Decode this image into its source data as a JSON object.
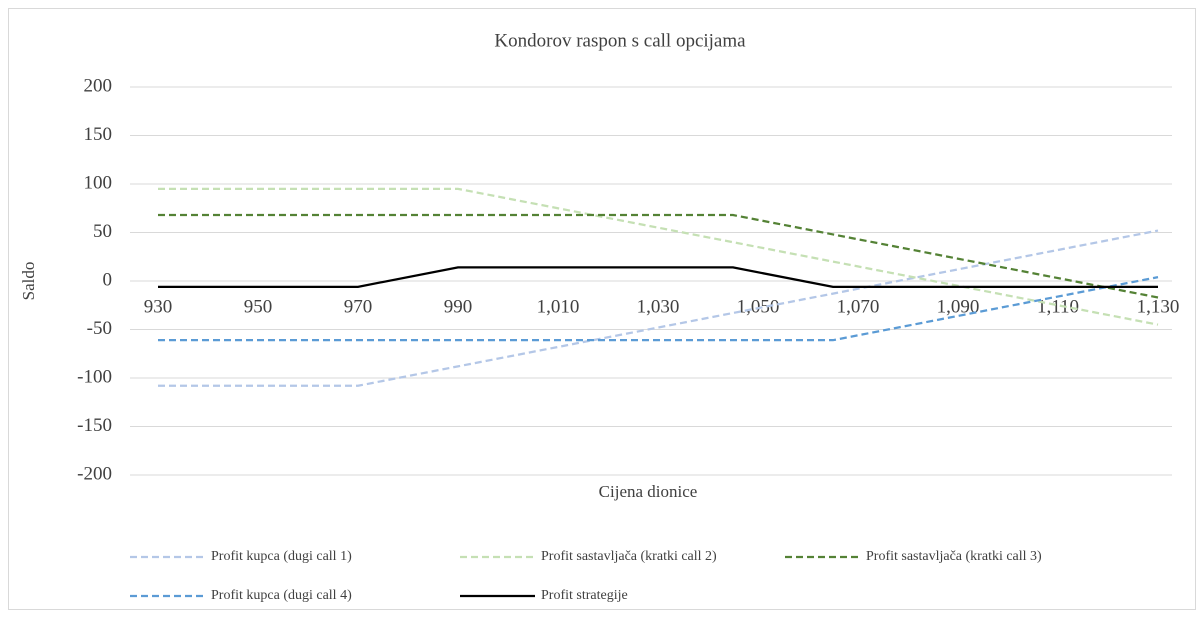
{
  "chart_data": {
    "type": "line",
    "title": "Kondorov raspon s call opcijama",
    "x_label": "Cijena dionice",
    "y_label": "Saldo",
    "x": [
      930,
      970,
      990,
      1045,
      1065,
      1130
    ],
    "xlim": [
      930,
      1130
    ],
    "xticks": [
      930,
      950,
      970,
      990,
      {
        "value": 1010,
        "label": "1,010"
      },
      {
        "value": 1030,
        "label": "1,030"
      },
      {
        "value": 1050,
        "label": "1,050"
      },
      {
        "value": 1070,
        "label": "1,070"
      },
      {
        "value": 1090,
        "label": "1,090"
      },
      {
        "value": 1110,
        "label": "1,110"
      },
      {
        "value": 1130,
        "label": "1,130"
      }
    ],
    "ylim": [
      -200,
      200
    ],
    "yticks": [
      -200,
      -150,
      -100,
      -50,
      0,
      50,
      100,
      150,
      200
    ],
    "grid": true,
    "legend": "bottom",
    "series": [
      {
        "name": "Profit kupca (dugi call 1)",
        "color": "#b4c7e7",
        "dashed": true,
        "values": [
          -108,
          -108,
          -88,
          -33,
          -13,
          52
        ]
      },
      {
        "name": "Profit sastavljača (kratki call 2)",
        "color": "#c5e0b4",
        "dashed": true,
        "values": [
          95,
          95,
          95,
          40,
          20,
          -45
        ]
      },
      {
        "name": "Profit sastavljača (kratki call 3)",
        "color": "#548235",
        "dashed": true,
        "values": [
          68,
          68,
          68,
          68,
          48,
          -17
        ]
      },
      {
        "name": "Profit kupca (dugi call 4)",
        "color": "#5b9bd5",
        "dashed": true,
        "values": [
          -61,
          -61,
          -61,
          -61,
          -61,
          4
        ]
      },
      {
        "name": "Profit strategije",
        "color": "#000000",
        "dashed": false,
        "values": [
          -6,
          -6,
          14,
          14,
          -6,
          -6
        ]
      }
    ]
  }
}
